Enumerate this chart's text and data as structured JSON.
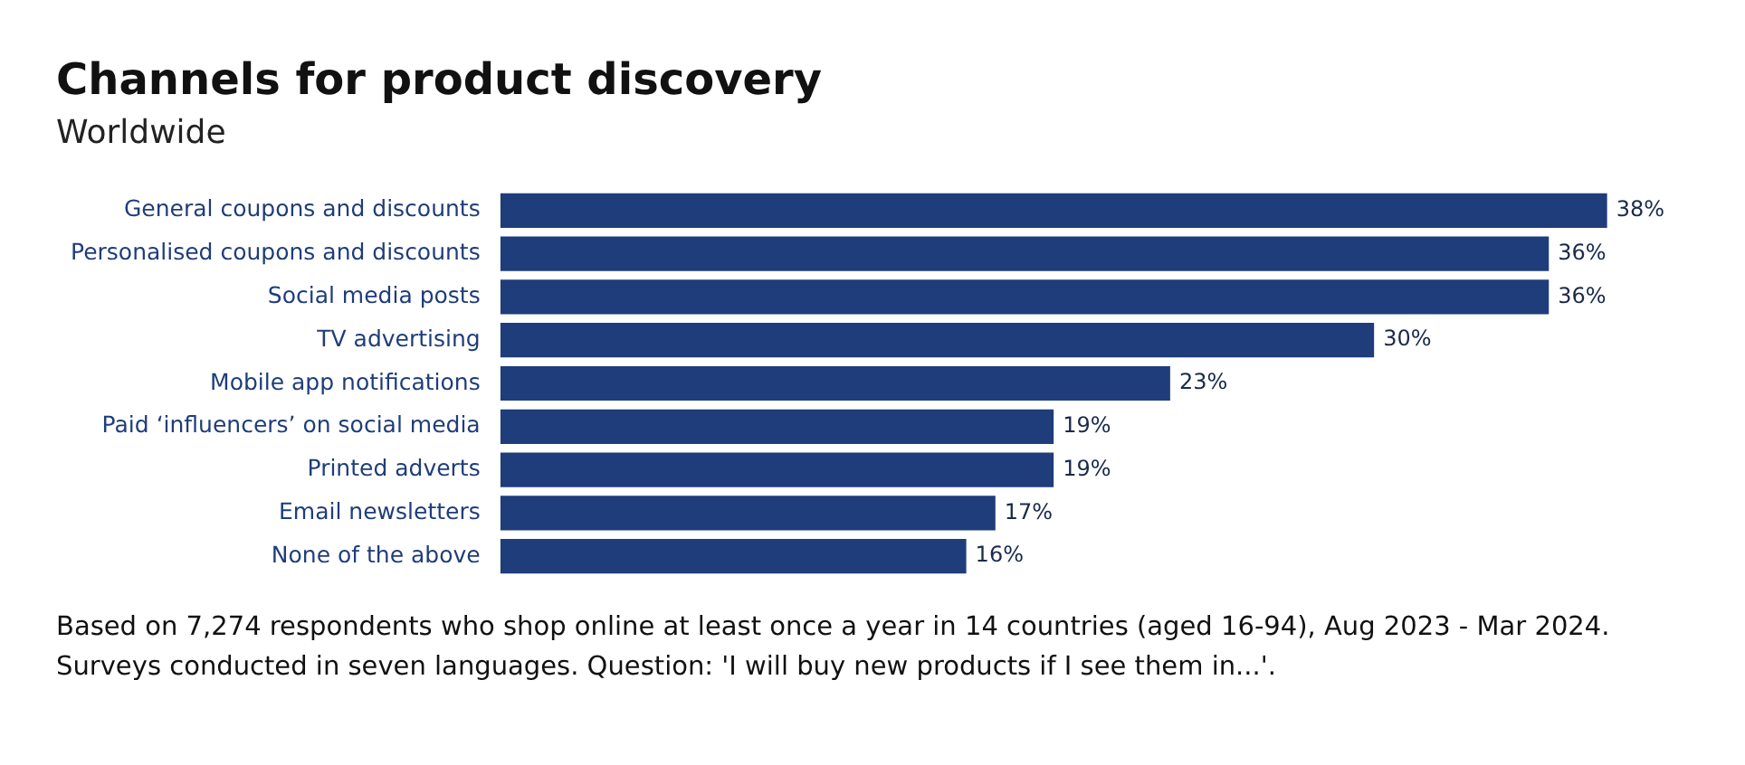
{
  "chart_data": {
    "type": "bar",
    "orientation": "horizontal",
    "title": "Channels for product discovery",
    "subtitle": "Worldwide",
    "categories": [
      "General coupons and discounts",
      "Personalised coupons and discounts",
      "Social media posts",
      "TV advertising",
      "Mobile app notifications",
      "Paid ‘influencers’ on social media",
      "Printed adverts",
      "Email newsletters",
      "None of the above"
    ],
    "values": [
      38,
      36,
      36,
      30,
      23,
      19,
      19,
      17,
      16
    ],
    "value_labels": [
      "38%",
      "36%",
      "36%",
      "30%",
      "23%",
      "19%",
      "19%",
      "17%",
      "16%"
    ],
    "color": "#1f3d7a",
    "legend": false,
    "tick_labels": "y",
    "annotations": [
      "Based on 7,274 respondents who shop online at least once a year in 14 countries (aged 16-94), Aug 2023 - Mar 2024. Surveys conducted in seven languages. Question: 'I will buy new products if I see them in...'."
    ]
  }
}
